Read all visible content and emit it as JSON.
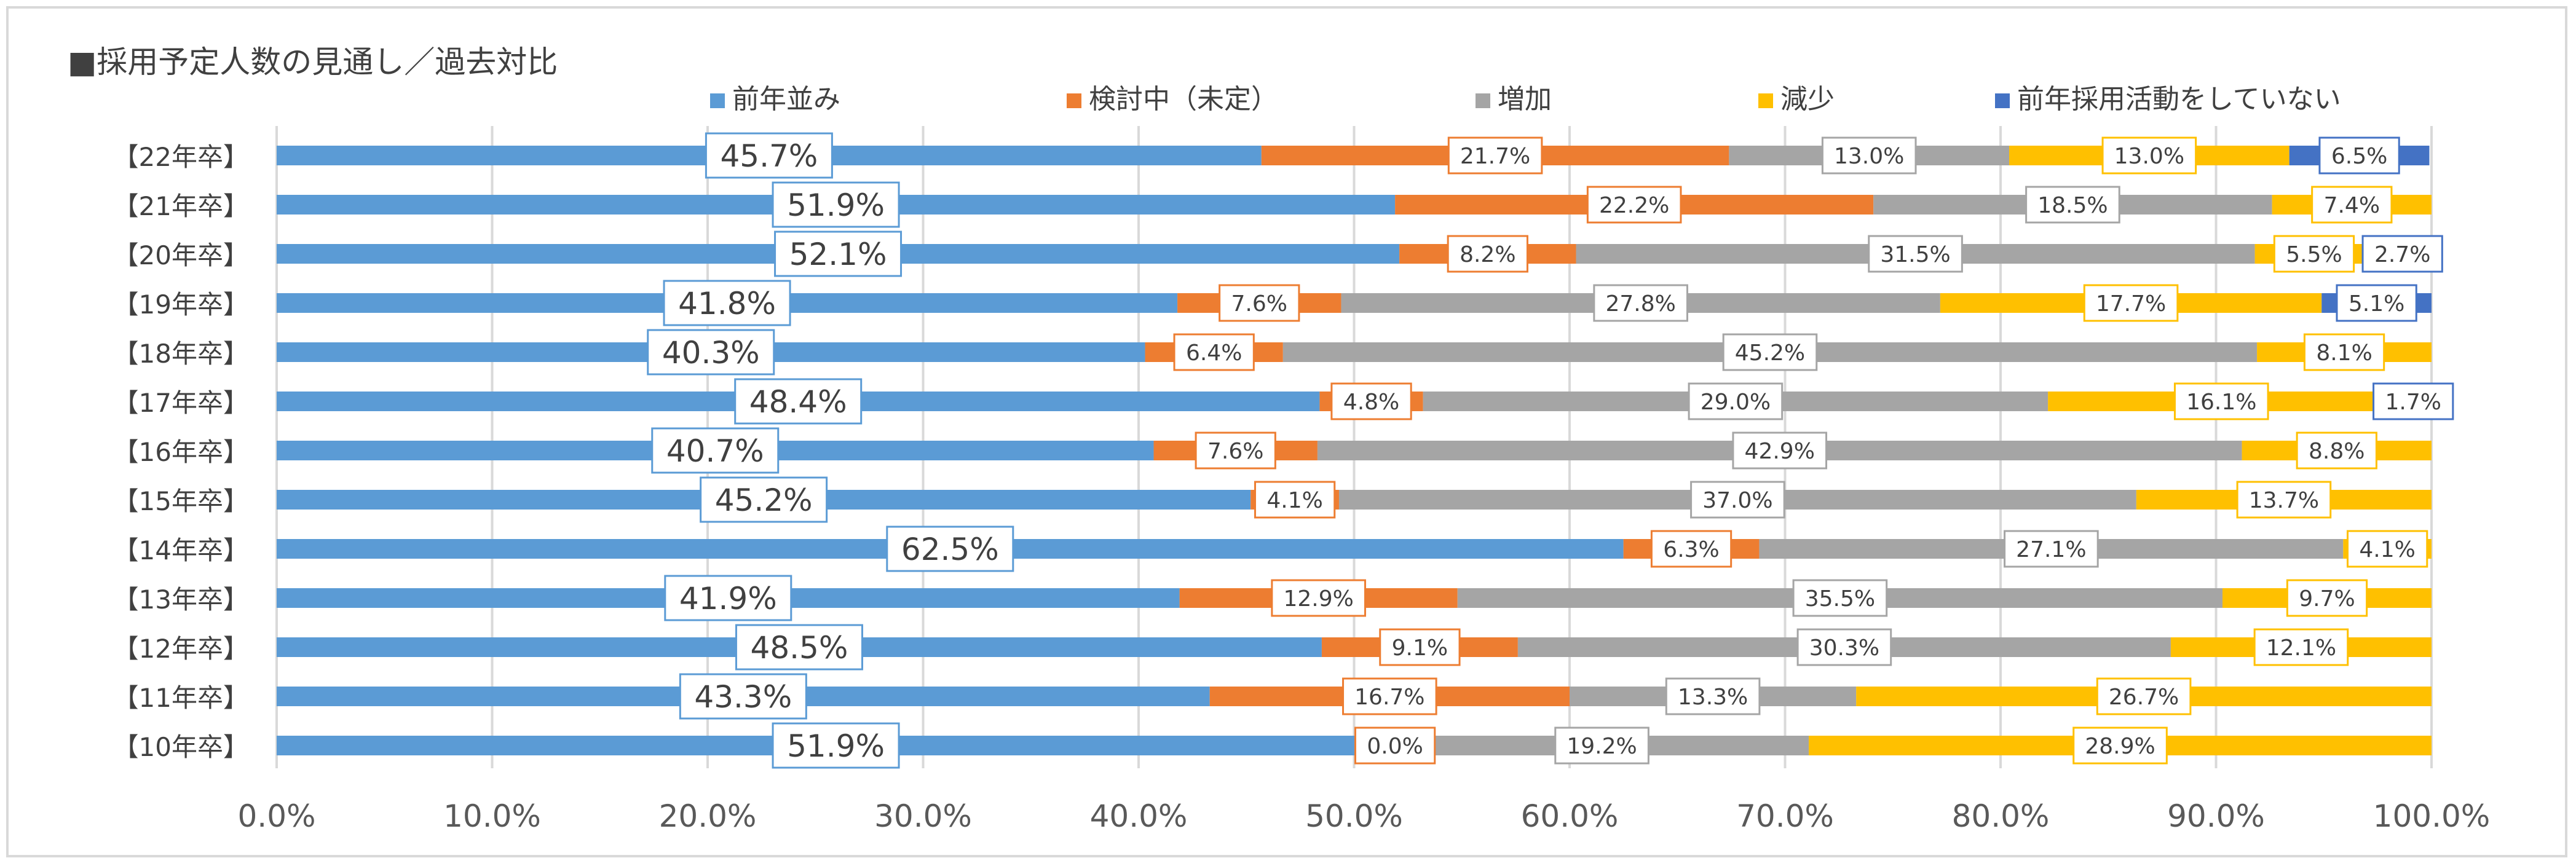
{
  "chart_data": {
    "type": "bar",
    "orientation": "horizontal",
    "stacked": "100%",
    "title": "■採用予定人数の見通し／過去対比",
    "categories": [
      "【22年卒】",
      "【21年卒】",
      "【20年卒】",
      "【19年卒】",
      "【18年卒】",
      "【17年卒】",
      "【16年卒】",
      "【15年卒】",
      "【14年卒】",
      "【13年卒】",
      "【12年卒】",
      "【11年卒】",
      "【10年卒】"
    ],
    "series": [
      {
        "name": "前年並み",
        "color": "#5b9bd5",
        "values": [
          45.7,
          51.9,
          52.1,
          41.8,
          40.3,
          48.4,
          40.7,
          45.2,
          62.5,
          41.9,
          48.5,
          43.3,
          51.9
        ],
        "labels": [
          "45.7%",
          "51.9%",
          "52.1%",
          "41.8%",
          "40.3%",
          "48.4%",
          "40.7%",
          "45.2%",
          "62.5%",
          "41.9%",
          "48.5%",
          "43.3%",
          "51.9%"
        ]
      },
      {
        "name": "検討中（未定）",
        "color": "#ed7d31",
        "values": [
          21.7,
          22.2,
          8.2,
          7.6,
          6.4,
          4.8,
          7.6,
          4.1,
          6.3,
          12.9,
          9.1,
          16.7,
          0.0
        ],
        "labels": [
          "21.7%",
          "22.2%",
          "8.2%",
          "7.6%",
          "6.4%",
          "4.8%",
          "7.6%",
          "4.1%",
          "6.3%",
          "12.9%",
          "9.1%",
          "16.7%",
          "0.0%"
        ]
      },
      {
        "name": "増加",
        "color": "#a5a5a5",
        "values": [
          13.0,
          18.5,
          31.5,
          27.8,
          45.2,
          29.0,
          42.9,
          37.0,
          27.1,
          35.5,
          30.3,
          13.3,
          19.2
        ],
        "labels": [
          "13.0%",
          "18.5%",
          "31.5%",
          "27.8%",
          "45.2%",
          "29.0%",
          "42.9%",
          "37.0%",
          "27.1%",
          "35.5%",
          "30.3%",
          "13.3%",
          "19.2%"
        ]
      },
      {
        "name": "減少",
        "color": "#ffc000",
        "values": [
          13.0,
          7.4,
          5.5,
          17.7,
          8.1,
          16.1,
          8.8,
          13.7,
          4.1,
          9.7,
          12.1,
          26.7,
          28.9
        ],
        "labels": [
          "13.0%",
          "7.4%",
          "5.5%",
          "17.7%",
          "8.1%",
          "16.1%",
          "8.8%",
          "13.7%",
          "4.1%",
          "9.7%",
          "12.1%",
          "26.7%",
          "28.9%"
        ]
      },
      {
        "name": "前年採用活動をしていない",
        "color": "#4472c4",
        "values": [
          6.5,
          0,
          2.7,
          5.1,
          0,
          1.7,
          0,
          0,
          0,
          0,
          0,
          0,
          0
        ],
        "labels": [
          "6.5%",
          "",
          "2.7%",
          "5.1%",
          "",
          "1.7%",
          "",
          "",
          "",
          "",
          "",
          "",
          ""
        ]
      }
    ],
    "xlim": [
      0,
      100
    ],
    "xticks": [
      "0.0%",
      "10.0%",
      "20.0%",
      "30.0%",
      "40.0%",
      "50.0%",
      "60.0%",
      "70.0%",
      "80.0%",
      "90.0%",
      "100.0%"
    ],
    "grid": true,
    "legend_position": "top"
  }
}
